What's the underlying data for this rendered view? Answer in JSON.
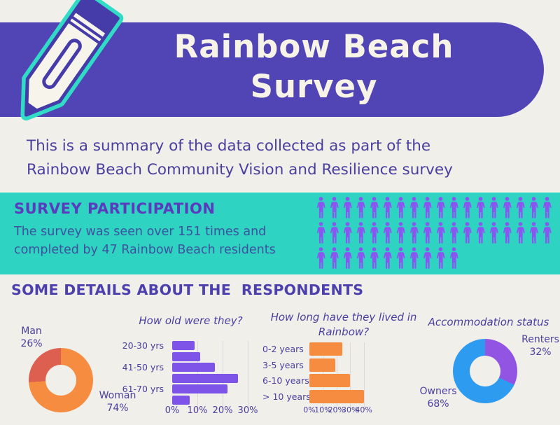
{
  "header": {
    "title_line1": "Rainbow Beach",
    "title_line2": "Survey",
    "banner_color": "#5145b5",
    "title_color": "#f7f3e7",
    "pencil_icon_colors": {
      "outline": "#30dcc6",
      "body": "#f7f4ec",
      "detail": "#453caa"
    }
  },
  "intro": {
    "line1": "This is a summary of the data collected as part of the",
    "line2": "Rainbow Beach Community Vision and Resilience survey"
  },
  "participation": {
    "heading": "SURVEY PARTICIPATION",
    "line1": "The survey was seen over 151 times and",
    "line2": "completed by 47 Rainbow Beach residents",
    "band_color": "#2ed3c1",
    "heading_color": "#5a3bbd",
    "pictogram": {
      "total": 47,
      "rows": [
        18,
        18,
        11
      ],
      "color": "#8a55f0"
    }
  },
  "details_heading": "SOME DETAILS ABOUT THE  RESPONDENTS",
  "chart_data": [
    {
      "id": "gender",
      "type": "pie",
      "title": "",
      "donut": true,
      "slices": [
        {
          "label": "Woman",
          "value": 74,
          "pct": "74%",
          "color": "#f68c3f"
        },
        {
          "label": "Man",
          "value": 26,
          "pct": "26%",
          "color": "#dd5f50"
        }
      ],
      "legend_position": "outside"
    },
    {
      "id": "age",
      "type": "bar",
      "title": "How old were they?",
      "orientation": "horizontal",
      "bars": [
        {
          "label": "20-30 yrs",
          "value": 9
        },
        {
          "label": "",
          "value": 11
        },
        {
          "label": "41-50 yrs",
          "value": 17
        },
        {
          "label": "",
          "value": 26
        },
        {
          "label": "61-70 yrs",
          "value": 22
        },
        {
          "label": "",
          "value": 7
        }
      ],
      "x_ticks": [
        "0%",
        "10%",
        "20%",
        "30%"
      ],
      "xlim": [
        0,
        33
      ],
      "grid": true,
      "bar_color": "#7e53e8"
    },
    {
      "id": "residence",
      "type": "bar",
      "title": "How long have they lived in Rainbow?",
      "title_line1": "How long have they lived in",
      "title_line2": "Rainbow?",
      "orientation": "horizontal",
      "bars": [
        {
          "label": "0-2 years",
          "value": 24
        },
        {
          "label": "3-5 years",
          "value": 19
        },
        {
          "label": "6-10 years",
          "value": 30
        },
        {
          "label": "> 10 years",
          "value": 40
        }
      ],
      "x_ticks": [
        "0%",
        "10%",
        "20%",
        "30%",
        "40%"
      ],
      "xlim": [
        0,
        44
      ],
      "grid": true,
      "bar_color": "#f68c3f"
    },
    {
      "id": "accommodation",
      "type": "pie",
      "title": "Accommodation status",
      "donut": true,
      "slices": [
        {
          "label": "Renters",
          "value": 32,
          "pct": "32%",
          "color": "#9254e3"
        },
        {
          "label": "Owners",
          "value": 68,
          "pct": "68%",
          "color": "#2d9cf0"
        }
      ],
      "legend_position": "outside"
    }
  ]
}
